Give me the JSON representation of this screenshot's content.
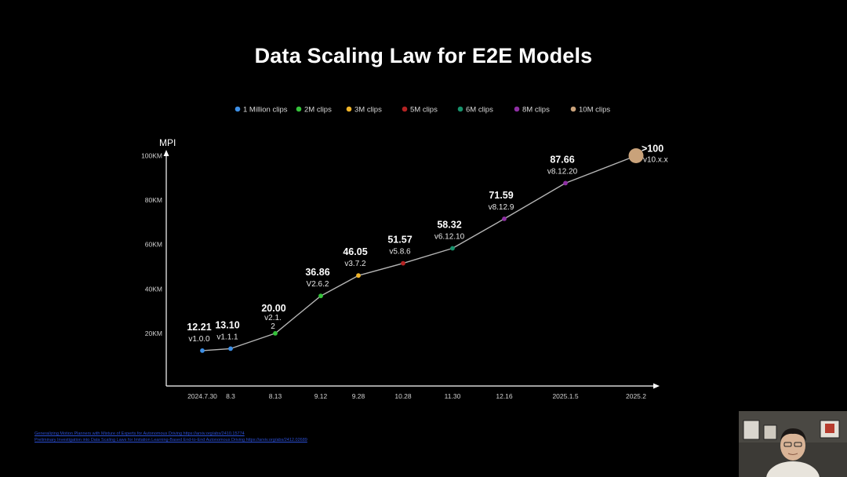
{
  "slide": {
    "title": "Data Scaling Law for E2E Models"
  },
  "references": [
    "Generalizing Motion Planners with Mixture of Experts for Autonomous Driving    https://arxiv.org/abs/2410.15774",
    "Preliminary Investigation into Data Scaling Laws for Imitation Learning-Based End-to-End Autonomous Driving  https://arxiv.org/abs/2412.02689"
  ],
  "chart_data": {
    "type": "line",
    "title": "Data Scaling Law for E2E Models",
    "ylabel": "MPI",
    "xlabel": "",
    "ylim": [
      0,
      100
    ],
    "y_ticks": [
      "20KM",
      "40KM",
      "60KM",
      "80KM",
      "100KM"
    ],
    "y_tick_values": [
      20,
      40,
      60,
      80,
      100
    ],
    "categories": [
      "2024.7.30",
      "8.3",
      "8.13",
      "9.12",
      "9.28",
      "10.28",
      "11.30",
      "12.16",
      "2025.1.5",
      "2025.2"
    ],
    "values": [
      12.21,
      13.1,
      20.0,
      36.86,
      46.05,
      51.57,
      58.32,
      71.59,
      87.66,
      100
    ],
    "value_labels": [
      "12.21",
      "13.10",
      "20.00",
      "36.86",
      "46.05",
      "51.57",
      "58.32",
      "71.59",
      "87.66",
      ">100"
    ],
    "versions": [
      "v1.0.0",
      "v1.1.1",
      "v2.1.2",
      "V2.6.2",
      "v3.7.2",
      "v5.8.6",
      "v6.12.10",
      "v8.12.9",
      "v8.12.20",
      "v10.x.x"
    ],
    "point_groups": [
      0,
      0,
      1,
      1,
      2,
      3,
      4,
      5,
      5,
      6
    ],
    "legend": {
      "placement": "top-center",
      "items": [
        {
          "label": "1 Million clips",
          "color": "#3d8fe6"
        },
        {
          "label": "2M clips",
          "color": "#35c23a"
        },
        {
          "label": "3M clips",
          "color": "#f0b429"
        },
        {
          "label": "5M clips",
          "color": "#b42323"
        },
        {
          "label": "6M clips",
          "color": "#17916b"
        },
        {
          "label": "8M clips",
          "color": "#8e2fa3"
        },
        {
          "label": "10M clips",
          "color": "#c9a27a"
        }
      ]
    },
    "line_color": "#b5b5b5",
    "grid": false
  }
}
